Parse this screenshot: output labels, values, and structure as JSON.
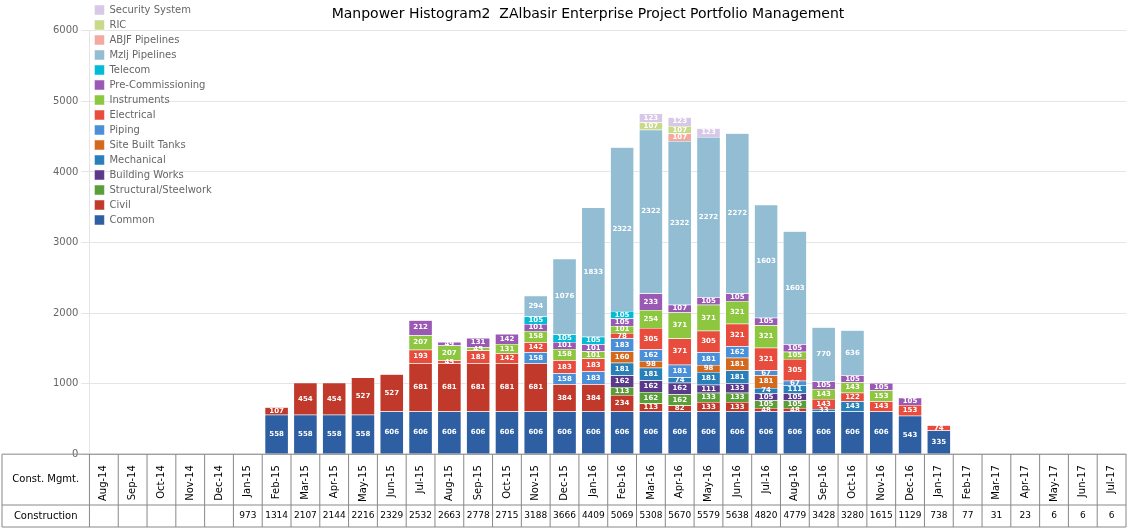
{
  "chart_data": {
    "type": "bar",
    "title": "Manpower Histogram2  ZAlbasir Enterprise Project Portfolio Management",
    "categories": [
      "Aug-14",
      "Sep-14",
      "Oct-14",
      "Nov-14",
      "Dec-14",
      "Jan-15",
      "Feb-15",
      "Mar-15",
      "Apr-15",
      "May-15",
      "Jun-15",
      "Jul-15",
      "Aug-15",
      "Sep-15",
      "Oct-15",
      "Nov-15",
      "Dec-15",
      "Jan-16",
      "Feb-16",
      "Mar-16",
      "Apr-16",
      "May-16",
      "Jun-16",
      "Jul-16",
      "Aug-16",
      "Sep-16",
      "Oct-16",
      "Nov-16",
      "Dec-16",
      "Jan-17",
      "Feb-17",
      "Mar-17",
      "Apr-17",
      "May-17",
      "Jun-17",
      "Jul-17"
    ],
    "xlabel": "Const. Mgmt.",
    "totals_label": "Construction",
    "totals": [
      null,
      null,
      null,
      null,
      null,
      973,
      1314,
      2107,
      2144,
      2216,
      2329,
      2532,
      2663,
      2778,
      2715,
      3188,
      3666,
      4409,
      5069,
      5308,
      5670,
      5579,
      5638,
      4820,
      4779,
      3428,
      3280,
      1615,
      1129,
      738,
      77,
      31,
      23,
      6,
      6,
      6
    ],
    "series": [
      {
        "name": "Common",
        "color": "#2e5fa3",
        "values": [
          0,
          0,
          0,
          0,
          0,
          0,
          558,
          558,
          558,
          558,
          606,
          606,
          606,
          606,
          606,
          606,
          606,
          606,
          606,
          606,
          606,
          606,
          606,
          606,
          606,
          606,
          606,
          606,
          543,
          335,
          0,
          0,
          0,
          0,
          0,
          0
        ]
      },
      {
        "name": "Civil",
        "color": "#c0392b",
        "values": [
          0,
          0,
          0,
          0,
          0,
          0,
          107,
          454,
          454,
          527,
          527,
          681,
          681,
          681,
          681,
          681,
          384,
          384,
          234,
          113,
          82,
          133,
          133,
          48,
          48,
          0,
          0,
          0,
          0,
          0,
          0,
          0,
          0,
          0,
          0,
          0
        ]
      },
      {
        "name": "Structural/Steelwork",
        "color": "#5a9e38",
        "values": [
          0,
          0,
          0,
          0,
          0,
          0,
          0,
          0,
          0,
          0,
          0,
          0,
          0,
          0,
          0,
          0,
          0,
          0,
          113,
          162,
          162,
          133,
          133,
          105,
          105,
          0,
          0,
          0,
          0,
          0,
          0,
          0,
          0,
          0,
          0,
          0
        ]
      },
      {
        "name": "Building Works",
        "color": "#5b3a8c",
        "values": [
          0,
          0,
          0,
          0,
          0,
          0,
          0,
          0,
          0,
          0,
          0,
          0,
          0,
          0,
          0,
          0,
          0,
          0,
          162,
          162,
          162,
          111,
          133,
          105,
          105,
          0,
          0,
          0,
          0,
          0,
          0,
          0,
          0,
          0,
          0,
          0
        ]
      },
      {
        "name": "Mechanical",
        "color": "#2980b9",
        "values": [
          0,
          0,
          0,
          0,
          0,
          0,
          0,
          0,
          0,
          0,
          0,
          0,
          0,
          0,
          0,
          0,
          0,
          0,
          181,
          181,
          74,
          181,
          181,
          74,
          111,
          33,
          143,
          0,
          0,
          0,
          0,
          0,
          0,
          0,
          0,
          0
        ]
      },
      {
        "name": "Site Built Tanks",
        "color": "#d4691e",
        "values": [
          0,
          0,
          0,
          0,
          0,
          0,
          0,
          0,
          0,
          0,
          0,
          0,
          0,
          0,
          0,
          0,
          0,
          0,
          160,
          98,
          0,
          98,
          181,
          181,
          0,
          0,
          0,
          0,
          0,
          0,
          0,
          0,
          0,
          0,
          0,
          0
        ]
      },
      {
        "name": "Piping",
        "color": "#4a90d9",
        "values": [
          0,
          0,
          0,
          0,
          0,
          0,
          0,
          0,
          0,
          0,
          0,
          0,
          0,
          0,
          0,
          158,
          158,
          183,
          183,
          162,
          181,
          181,
          162,
          67,
          67,
          0,
          0,
          0,
          0,
          0,
          0,
          0,
          0,
          0,
          0,
          0
        ]
      },
      {
        "name": "Electrical",
        "color": "#e74c3c",
        "values": [
          0,
          0,
          0,
          0,
          0,
          0,
          0,
          0,
          0,
          0,
          0,
          193,
          45,
          183,
          142,
          142,
          183,
          183,
          78,
          305,
          371,
          305,
          321,
          321,
          305,
          143,
          122,
          143,
          153,
          74,
          0,
          0,
          0,
          0,
          0,
          0
        ]
      },
      {
        "name": "Instruments",
        "color": "#8dc63f",
        "values": [
          0,
          0,
          0,
          0,
          0,
          0,
          0,
          0,
          0,
          0,
          0,
          207,
          207,
          45,
          131,
          158,
          158,
          101,
          101,
          254,
          371,
          371,
          321,
          321,
          105,
          143,
          143,
          153,
          0,
          0,
          0,
          0,
          0,
          0,
          0,
          0
        ]
      },
      {
        "name": "Pre-Commissioning",
        "color": "#9b59b6",
        "values": [
          0,
          0,
          0,
          0,
          0,
          0,
          0,
          0,
          0,
          0,
          0,
          212,
          49,
          131,
          142,
          101,
          101,
          101,
          105,
          233,
          107,
          105,
          105,
          105,
          105,
          105,
          105,
          105,
          105,
          0,
          0,
          0,
          0,
          0,
          0,
          0
        ]
      },
      {
        "name": "Telecom",
        "color": "#00bcd4",
        "values": [
          0,
          0,
          0,
          0,
          0,
          0,
          0,
          0,
          0,
          0,
          0,
          0,
          0,
          0,
          0,
          105,
          105,
          105,
          105,
          0,
          0,
          0,
          0,
          0,
          0,
          0,
          0,
          0,
          0,
          0,
          0,
          0,
          0,
          0,
          0,
          0
        ]
      },
      {
        "name": "Mzlj Pipelines",
        "color": "#92bdd3",
        "values": [
          0,
          0,
          0,
          0,
          0,
          0,
          0,
          0,
          0,
          0,
          0,
          0,
          0,
          0,
          0,
          294,
          1076,
          1833,
          2322,
          2322,
          2322,
          2272,
          2272,
          1603,
          1603,
          770,
          636,
          0,
          0,
          0,
          0,
          0,
          0,
          0,
          0,
          0
        ]
      },
      {
        "name": "ABJF Pipelines",
        "color": "#f4a9a0",
        "values": [
          0,
          0,
          0,
          0,
          0,
          0,
          0,
          0,
          0,
          0,
          0,
          0,
          0,
          0,
          0,
          0,
          0,
          0,
          0,
          0,
          107,
          0,
          0,
          0,
          0,
          0,
          0,
          0,
          0,
          0,
          0,
          0,
          0,
          0,
          0,
          0
        ]
      },
      {
        "name": "RIC",
        "color": "#c8d98a",
        "values": [
          0,
          0,
          0,
          0,
          0,
          0,
          0,
          0,
          0,
          0,
          0,
          0,
          0,
          0,
          0,
          0,
          0,
          0,
          0,
          107,
          107,
          0,
          0,
          0,
          0,
          0,
          0,
          0,
          0,
          0,
          0,
          0,
          0,
          0,
          0,
          0
        ]
      },
      {
        "name": "Security System",
        "color": "#d8c8e8",
        "values": [
          0,
          0,
          0,
          0,
          0,
          0,
          0,
          0,
          0,
          0,
          0,
          0,
          0,
          0,
          0,
          0,
          0,
          0,
          0,
          123,
          123,
          123,
          0,
          0,
          0,
          0,
          0,
          0,
          0,
          0,
          0,
          0,
          0,
          0,
          0,
          0
        ]
      }
    ],
    "ylim": [
      0,
      6000
    ],
    "yticks": [
      0,
      1000,
      2000,
      3000,
      4000,
      5000,
      6000
    ],
    "grid": true,
    "stacked": true,
    "data_labels": true,
    "legend": "upper left"
  }
}
